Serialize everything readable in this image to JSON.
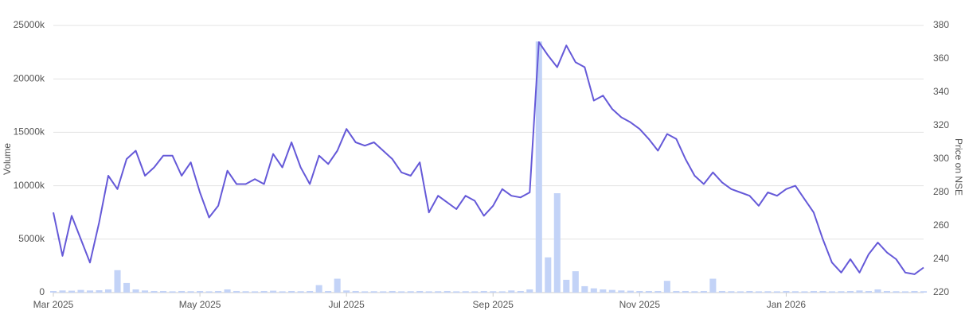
{
  "chart_data": {
    "type": "bar-line",
    "categories": [
      "Mar 2025",
      null,
      null,
      null,
      null,
      null,
      null,
      null,
      null,
      null,
      null,
      null,
      null,
      null,
      null,
      null,
      "May 2025",
      null,
      null,
      null,
      null,
      null,
      null,
      null,
      null,
      null,
      null,
      null,
      null,
      null,
      null,
      null,
      "Jul 2025",
      null,
      null,
      null,
      null,
      null,
      null,
      null,
      null,
      null,
      null,
      null,
      null,
      null,
      null,
      null,
      "Sep 2025",
      null,
      null,
      null,
      null,
      null,
      null,
      null,
      null,
      null,
      null,
      null,
      null,
      null,
      null,
      null,
      "Nov 2025",
      null,
      null,
      null,
      null,
      null,
      null,
      null,
      null,
      null,
      null,
      null,
      null,
      null,
      null,
      null,
      "Jan 2026",
      null,
      null,
      null,
      null,
      null,
      null,
      null,
      null,
      null,
      null,
      null,
      null,
      null,
      null,
      null
    ],
    "ylabel": "Volume",
    "y2label": "Price on NSE",
    "ylim": [
      0,
      25000
    ],
    "yticks": [
      0,
      {
        "value": 5000,
        "label": "5000k"
      },
      {
        "value": 10000,
        "label": "10000k"
      },
      {
        "value": 15000,
        "label": "15000k"
      },
      {
        "value": 20000,
        "label": "20000k"
      },
      {
        "value": 25000,
        "label": "25000k"
      }
    ],
    "y2lim": [
      220,
      380
    ],
    "y2ticks": [
      220,
      240,
      260,
      280,
      300,
      320,
      340,
      360,
      380
    ],
    "grid": true,
    "series": [
      {
        "name": "Volume",
        "type": "bar",
        "color": "#c3d3f7",
        "values": [
          150,
          200,
          180,
          250,
          200,
          220,
          300,
          2100,
          900,
          300,
          200,
          150,
          150,
          120,
          150,
          130,
          150,
          120,
          150,
          300,
          150,
          130,
          120,
          150,
          180,
          120,
          150,
          130,
          150,
          700,
          150,
          1300,
          200,
          150,
          120,
          130,
          120,
          150,
          120,
          130,
          150,
          120,
          130,
          150,
          120,
          130,
          120,
          150,
          130,
          120,
          200,
          150,
          300,
          23500,
          3300,
          9300,
          1200,
          2000,
          600,
          400,
          300,
          250,
          200,
          180,
          150,
          150,
          150,
          1100,
          150,
          150,
          130,
          150,
          1300,
          150,
          130,
          120,
          150,
          120,
          130,
          120,
          150,
          130,
          120,
          150,
          150,
          120,
          130,
          150,
          200,
          150,
          300,
          150,
          130,
          120,
          150,
          130
        ]
      },
      {
        "name": "Price on NSE",
        "type": "line",
        "axis": "y2",
        "color": "#6559d8",
        "values": [
          268,
          242,
          266,
          252,
          238,
          262,
          290,
          282,
          300,
          305,
          290,
          295,
          302,
          302,
          290,
          298,
          280,
          265,
          272,
          293,
          285,
          285,
          288,
          285,
          303,
          295,
          310,
          295,
          285,
          302,
          297,
          305,
          318,
          310,
          308,
          310,
          305,
          300,
          292,
          290,
          298,
          268,
          278,
          274,
          270,
          278,
          275,
          266,
          272,
          282,
          278,
          277,
          280,
          370,
          362,
          355,
          368,
          358,
          355,
          335,
          338,
          330,
          325,
          322,
          318,
          312,
          305,
          315,
          312,
          300,
          290,
          285,
          292,
          286,
          282,
          280,
          278,
          272,
          280,
          278,
          282,
          284,
          276,
          268,
          252,
          238,
          232,
          240,
          232,
          243,
          250,
          244,
          240,
          232,
          231,
          235
        ]
      }
    ]
  }
}
